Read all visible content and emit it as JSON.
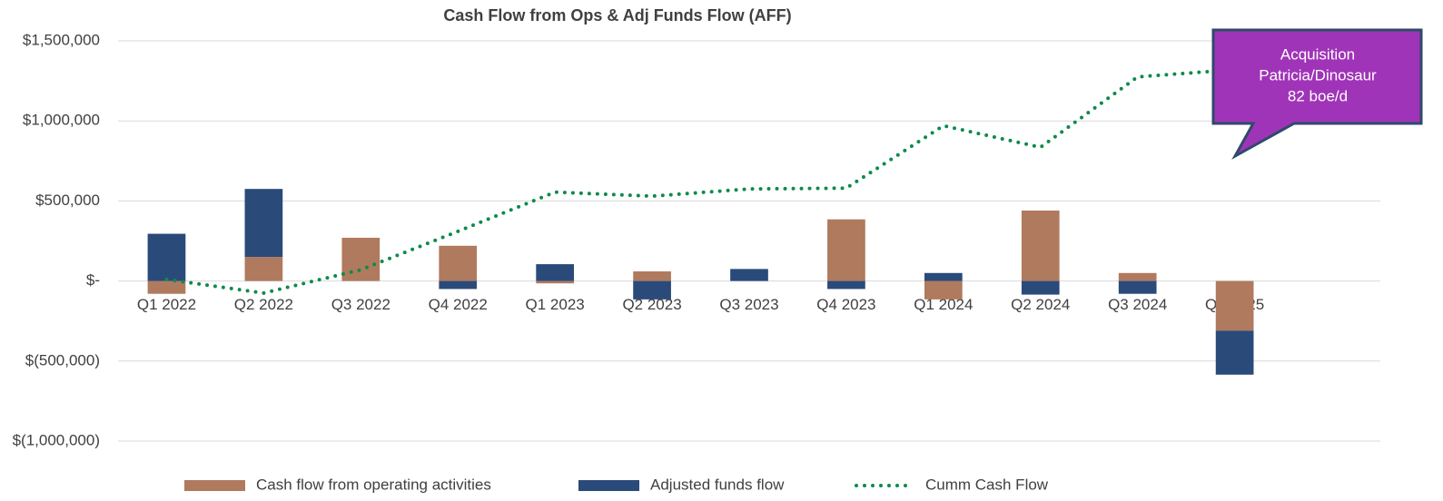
{
  "chart_data": {
    "type": "bar",
    "stacked": true,
    "title": "Cash Flow from Ops & Adj Funds Flow (AFF)",
    "categories": [
      "Q1 2022",
      "Q2 2022",
      "Q3 2022",
      "Q4 2022",
      "Q1 2023",
      "Q2 2023",
      "Q3 2023",
      "Q4 2023",
      "Q1 2024",
      "Q2 2024",
      "Q3 2024",
      "Q4 2025",
      null
    ],
    "series": [
      {
        "name": "Cash flow from operating activities",
        "type": "bar",
        "color": "#b07a5f",
        "values": [
          -80000,
          150000,
          270000,
          220000,
          -15000,
          60000,
          0,
          385000,
          -115000,
          440000,
          50000,
          -310000,
          null
        ]
      },
      {
        "name": "Adjusted funds flow",
        "type": "bar",
        "color": "#2a4a7a",
        "values": [
          295000,
          425000,
          0,
          -50000,
          105000,
          -115000,
          75000,
          -50000,
          50000,
          -85000,
          -80000,
          -275000,
          null
        ]
      },
      {
        "name": "Cumm Cash Flow",
        "type": "line",
        "color": "#0f8a4c",
        "values": [
          10000,
          -75000,
          70000,
          310000,
          555000,
          530000,
          575000,
          580000,
          970000,
          835000,
          1275000,
          1320000,
          null
        ]
      }
    ],
    "ylim": [
      -1000000,
      1500000
    ],
    "yticks": [
      {
        "value": -1000000,
        "label": "$(1,000,000)"
      },
      {
        "value": -500000,
        "label": "$(500,000)"
      },
      {
        "value": 0,
        "label": "$-"
      },
      {
        "value": 500000,
        "label": "$500,000"
      },
      {
        "value": 1000000,
        "label": "$1,000,000"
      },
      {
        "value": 1500000,
        "label": "$1,500,000"
      }
    ],
    "grid": true,
    "legend": "bottom",
    "annotation": [
      "Acquisition",
      "Patricia/Dinosaur",
      "82 boe/d"
    ]
  }
}
